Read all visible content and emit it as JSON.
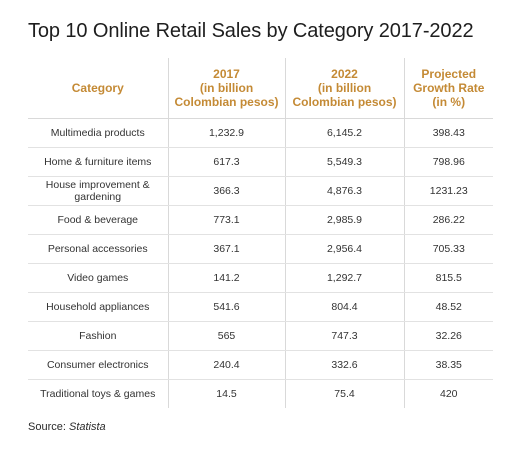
{
  "title": "Top 10 Online Retail Sales by Category 2017-2022",
  "table": {
    "headers": [
      "Category",
      "2017\n(in billion\nColombian pesos)",
      "2022\n(in billion\nColombian pesos)",
      "Projected\nGrowth Rate\n(in %)"
    ],
    "rows": [
      [
        "Multimedia products",
        "1,232.9",
        "6,145.2",
        "398.43"
      ],
      [
        "Home & furniture items",
        "617.3",
        "5,549.3",
        "798.96"
      ],
      [
        "House improvement & gardening",
        "366.3",
        "4,876.3",
        "1231.23"
      ],
      [
        "Food & beverage",
        "773.1",
        "2,985.9",
        "286.22"
      ],
      [
        "Personal accessories",
        "367.1",
        "2,956.4",
        "705.33"
      ],
      [
        "Video games",
        "141.2",
        "1,292.7",
        "815.5"
      ],
      [
        "Household appliances",
        "541.6",
        "804.4",
        "48.52"
      ],
      [
        "Fashion",
        "565",
        "747.3",
        "32.26"
      ],
      [
        "Consumer electronics",
        "240.4",
        "332.6",
        "38.35"
      ],
      [
        "Traditional toys & games",
        "14.5",
        "75.4",
        "420"
      ]
    ]
  },
  "source": {
    "label": "Source:",
    "name": "Statista"
  },
  "colors": {
    "header_text": "#c48a35",
    "body_text": "#333333",
    "grid": "#d9d9d9"
  }
}
